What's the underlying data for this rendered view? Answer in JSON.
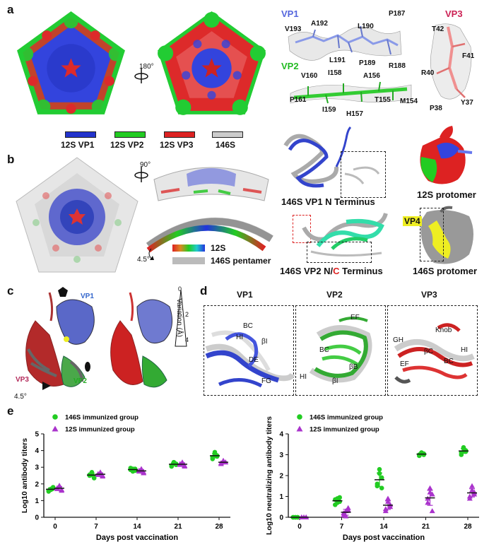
{
  "panels": {
    "a": "a",
    "b": "b",
    "c": "c",
    "d": "d",
    "e": "e"
  },
  "panel_a": {
    "rotation_label": "180°",
    "legend": [
      {
        "label": "12S VP1",
        "color": "#2233cc"
      },
      {
        "label": "12S VP2",
        "color": "#22cc22"
      },
      {
        "label": "12S VP3",
        "color": "#dd2222"
      },
      {
        "label": "146S",
        "color": "#cccccc"
      }
    ],
    "vp1": {
      "title": "VP1",
      "residues": [
        "A192",
        "L190",
        "P187",
        "V193",
        "L191",
        "P189",
        "R188"
      ]
    },
    "vp3": {
      "title": "VP3",
      "residues": [
        "T42",
        "F41",
        "R40",
        "P38",
        "Y37"
      ]
    },
    "vp2": {
      "title": "VP2",
      "residues": [
        "V160",
        "I158",
        "A156",
        "P161",
        "I159",
        "H157",
        "T155",
        "M154"
      ]
    }
  },
  "panel_b": {
    "rotation_label": "90°",
    "angle_label": "4.5°",
    "legend_12s": "12S",
    "legend_146s": "146S pentamer",
    "vp1_caption": "146S VP1 N Terminus",
    "protomer_12s": "12S protomer",
    "vp2_caption_a": "146S VP2 N/",
    "vp2_caption_c": "C",
    "vp2_caption_b": " Terminus",
    "vp4_label": "VP4",
    "protomer_146s": "146S protomer"
  },
  "panel_c": {
    "vp1": "VP1",
    "vp3": "VP3",
    "vp2": "VP2",
    "angle": "4.5°",
    "variation_label": "Variation (Å)",
    "scale_top": "0",
    "scale_mid": "2",
    "scale_bottom": "4"
  },
  "panel_d": {
    "titles": [
      "VP1",
      "VP2",
      "VP3"
    ],
    "vp1_labels": [
      "BC",
      "HI",
      "βI",
      "DE",
      "FG"
    ],
    "vp2_labels": [
      "EF",
      "BC",
      "βB",
      "HI",
      "βI"
    ],
    "vp3_labels": [
      "Knob",
      "GH",
      "βC",
      "HI",
      "EF",
      "BC"
    ]
  },
  "chart_data": [
    {
      "type": "scatter",
      "xlabel": "Days post vaccination",
      "ylabel": "Log10 antibody titers",
      "categories": [
        "0",
        "7",
        "14",
        "21",
        "28"
      ],
      "yticks": [
        "0",
        "1",
        "2",
        "3",
        "4",
        "5"
      ],
      "ylim": [
        0,
        5
      ],
      "series": [
        {
          "name": "146S immunized group",
          "color": "#22cc22",
          "marker": "circle",
          "points": [
            [
              1.6,
              1.7,
              1.75,
              1.55,
              1.65,
              1.8
            ],
            [
              2.5,
              2.6,
              2.45,
              2.55,
              2.7,
              2.35
            ],
            [
              2.85,
              2.9,
              2.8,
              2.95,
              2.75,
              2.9
            ],
            [
              3.1,
              3.3,
              3.2,
              3.05,
              3.25,
              3.15
            ],
            [
              3.6,
              3.9,
              3.7,
              3.5,
              3.8,
              3.65
            ]
          ],
          "means": [
            1.68,
            2.53,
            2.86,
            3.18,
            3.69
          ]
        },
        {
          "name": "12S immunized group",
          "color": "#aa33cc",
          "marker": "triangle",
          "points": [
            [
              1.7,
              1.85,
              1.6,
              1.75,
              1.9,
              1.65
            ],
            [
              2.55,
              2.65,
              2.45,
              2.6,
              2.7,
              2.5
            ],
            [
              2.75,
              2.85,
              2.7,
              2.8,
              2.9,
              2.65
            ],
            [
              3.15,
              3.25,
              3.05,
              3.2,
              3.3,
              3.1
            ],
            [
              3.25,
              3.35,
              3.3,
              3.2,
              3.4,
              3.3
            ]
          ],
          "means": [
            1.74,
            2.58,
            2.78,
            3.18,
            3.3
          ]
        }
      ]
    },
    {
      "type": "scatter",
      "xlabel": "Days post vaccination",
      "ylabel": "Log10 neutralizing antibody titers",
      "categories": [
        "0",
        "7",
        "14",
        "21",
        "28"
      ],
      "yticks": [
        "0",
        "1",
        "2",
        "3",
        "4"
      ],
      "ylim": [
        0,
        4
      ],
      "series": [
        {
          "name": "146S immunized group",
          "color": "#22cc22",
          "marker": "circle",
          "points": [
            [
              0,
              0,
              0,
              0,
              0,
              0
            ],
            [
              0.6,
              0.9,
              0.75,
              0.85,
              0.7,
              0.95
            ],
            [
              1.5,
              2.3,
              1.9,
              1.6,
              2.1,
              1.4
            ],
            [
              3.0,
              3.1,
              3.05,
              2.95,
              3.1,
              3.0
            ],
            [
              3.0,
              3.35,
              3.2,
              3.1,
              3.3,
              3.15
            ]
          ],
          "means": [
            0,
            0.79,
            1.8,
            3.03,
            3.18
          ]
        },
        {
          "name": "12S immunized group",
          "color": "#aa33cc",
          "marker": "triangle",
          "points": [
            [
              0,
              0,
              0,
              0,
              0,
              0
            ],
            [
              0.1,
              0.3,
              0.45,
              0.2,
              0.05,
              0.35
            ],
            [
              0.4,
              0.9,
              0.6,
              0.3,
              0.75,
              0.5
            ],
            [
              0.7,
              1.4,
              1.1,
              0.9,
              1.2,
              0.3
            ],
            [
              1.0,
              1.5,
              1.2,
              0.9,
              1.3,
              1.1
            ]
          ],
          "means": [
            0,
            0.24,
            0.58,
            0.93,
            1.17
          ]
        }
      ]
    }
  ]
}
